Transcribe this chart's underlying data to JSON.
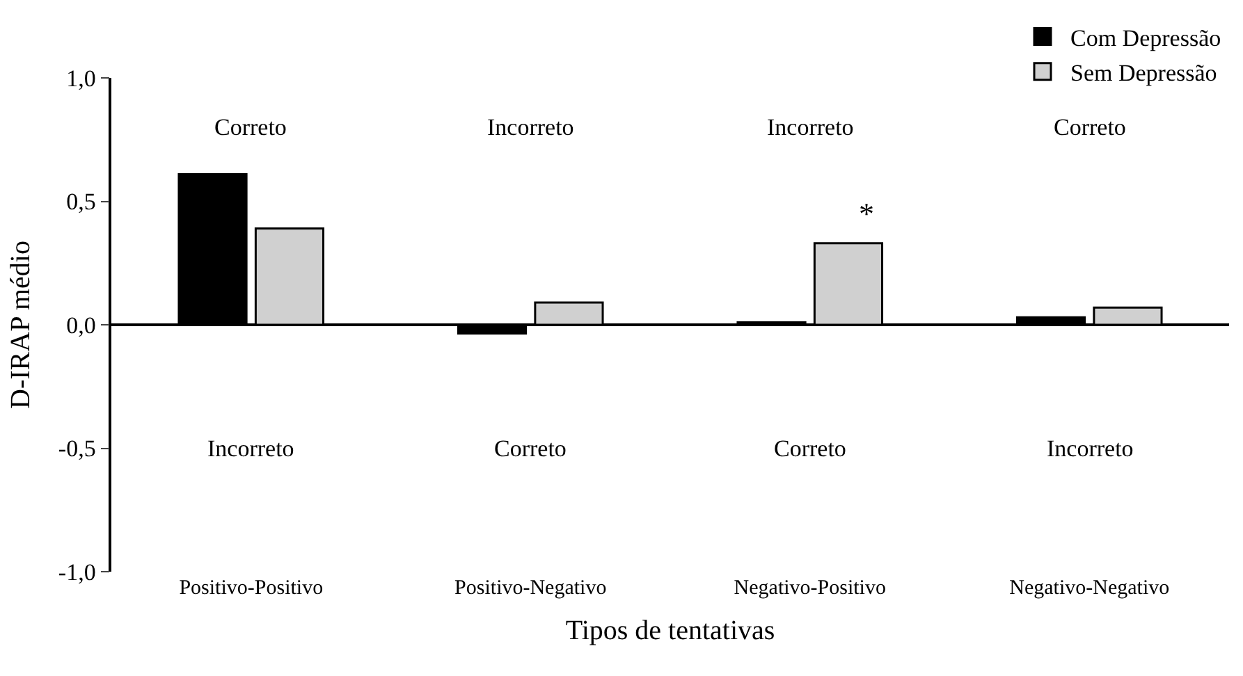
{
  "chart_data": {
    "type": "bar",
    "xlabel": "Tipos de tentativas",
    "ylabel": "D-IRAP médio",
    "categories": [
      "Positivo-Positivo",
      "Positivo-Negativo",
      "Negativo-Positivo",
      "Negativo-Negativo"
    ],
    "series": [
      {
        "name": "Com Depressão",
        "color": "#000000",
        "values": [
          0.61,
          -0.035,
          0.01,
          0.03
        ]
      },
      {
        "name": "Sem Depressão",
        "color": "#d0d0d0",
        "values": [
          0.39,
          0.09,
          0.33,
          0.07
        ]
      }
    ],
    "ylim": [
      -1.0,
      1.0
    ],
    "yticks": [
      {
        "value": -1.0,
        "label": "-1,0"
      },
      {
        "value": -0.5,
        "label": "-0,5"
      },
      {
        "value": 0.0,
        "label": "0,0"
      },
      {
        "value": 0.5,
        "label": "0,5"
      },
      {
        "value": 1.0,
        "label": "1,0"
      }
    ],
    "annotations": [
      "Correto",
      "Incorreto",
      "Incorreto",
      "Correto",
      "Incorreto",
      "Correto",
      "Correto",
      "Incorreto",
      "*"
    ],
    "legend": "top right"
  }
}
